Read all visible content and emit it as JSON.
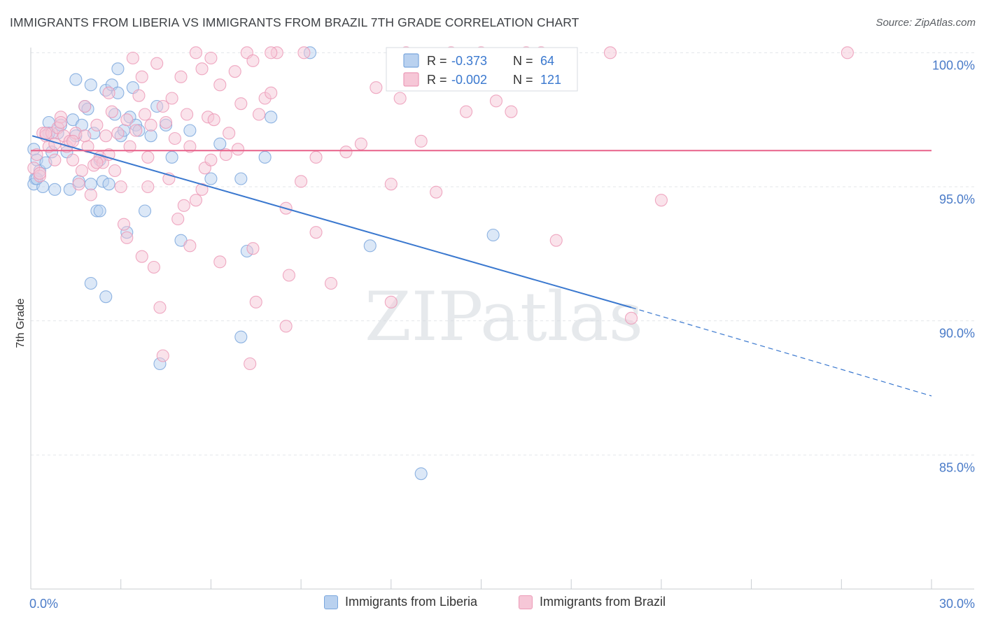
{
  "colors": {
    "blue": "#7ba7dd",
    "blue_fill": "#b9d1ef",
    "blue_line": "#3a78cf",
    "pink": "#ec9ab7",
    "pink_fill": "#f6c7d7",
    "pink_line": "#e8628a",
    "axis_label": "#4a7bc8",
    "grid": "#e3e6ea"
  },
  "chart_data": {
    "type": "scatter",
    "title": "IMMIGRANTS FROM LIBERIA VS IMMIGRANTS FROM BRAZIL 7TH GRADE CORRELATION CHART",
    "source": "Source: ZipAtlas.com",
    "xlabel": "",
    "ylabel": "7th Grade",
    "xlim": [
      0,
      30
    ],
    "ylim": [
      80,
      100.4
    ],
    "x_tick_labels": [
      "0.0%",
      "30.0%"
    ],
    "y_ticks": [
      85,
      90,
      95,
      100
    ],
    "y_tick_labels": [
      "85.0%",
      "90.0%",
      "95.0%",
      "100.0%"
    ],
    "watermark": "ZIPatlas",
    "legend_stats": [
      {
        "r_label": "R =",
        "r_value": "-0.373",
        "n_label": "N =",
        "n_value": "64"
      },
      {
        "r_label": "R =",
        "r_value": "-0.002",
        "n_label": "N =",
        "n_value": "121"
      }
    ],
    "series": [
      {
        "name": "Immigrants from Liberia",
        "trend": {
          "x0": 0.05,
          "y0": 96.9,
          "x1": 20.0,
          "y1": 90.5,
          "dash_to_x": 30.0,
          "dash_to_y": 87.2
        },
        "points": [
          [
            0.1,
            96.4
          ],
          [
            0.15,
            95.3
          ],
          [
            0.1,
            95.1
          ],
          [
            0.2,
            96.0
          ],
          [
            0.3,
            95.6
          ],
          [
            0.4,
            95.0
          ],
          [
            0.5,
            95.9
          ],
          [
            0.6,
            97.4
          ],
          [
            0.7,
            96.3
          ],
          [
            0.8,
            94.9
          ],
          [
            0.9,
            97.0
          ],
          [
            1.0,
            97.3
          ],
          [
            1.2,
            96.3
          ],
          [
            1.3,
            94.9
          ],
          [
            1.4,
            97.5
          ],
          [
            1.5,
            96.9
          ],
          [
            1.6,
            95.2
          ],
          [
            1.5,
            99.0
          ],
          [
            1.7,
            97.3
          ],
          [
            1.8,
            98.0
          ],
          [
            1.9,
            97.9
          ],
          [
            2.0,
            95.1
          ],
          [
            2.1,
            97.0
          ],
          [
            2.0,
            98.8
          ],
          [
            2.2,
            94.1
          ],
          [
            2.3,
            94.1
          ],
          [
            2.3,
            96.0
          ],
          [
            2.4,
            95.2
          ],
          [
            2.5,
            98.6
          ],
          [
            2.6,
            95.1
          ],
          [
            2.7,
            98.8
          ],
          [
            2.8,
            97.7
          ],
          [
            2.9,
            98.5
          ],
          [
            2.9,
            99.4
          ],
          [
            3.0,
            96.9
          ],
          [
            3.1,
            97.1
          ],
          [
            3.2,
            93.3
          ],
          [
            3.3,
            97.6
          ],
          [
            3.4,
            98.7
          ],
          [
            3.5,
            97.3
          ],
          [
            3.6,
            97.1
          ],
          [
            3.8,
            94.1
          ],
          [
            4.0,
            96.9
          ],
          [
            4.2,
            98.0
          ],
          [
            4.5,
            97.3
          ],
          [
            4.7,
            96.1
          ],
          [
            5.0,
            93.0
          ],
          [
            5.3,
            97.1
          ],
          [
            6.0,
            95.3
          ],
          [
            6.3,
            96.6
          ],
          [
            7.0,
            95.3
          ],
          [
            7.2,
            92.6
          ],
          [
            7.8,
            96.1
          ],
          [
            8.0,
            97.6
          ],
          [
            9.3,
            100.0
          ],
          [
            11.3,
            92.8
          ],
          [
            15.4,
            93.2
          ],
          [
            2.0,
            91.4
          ],
          [
            2.5,
            90.9
          ],
          [
            7.0,
            89.4
          ],
          [
            4.3,
            88.4
          ],
          [
            13.0,
            84.3
          ],
          [
            0.2,
            95.3
          ],
          [
            0.6,
            97.0
          ]
        ]
      },
      {
        "name": "Immigrants from Brazil",
        "trend": {
          "x0": 0.0,
          "y0": 96.35,
          "x1": 30.0,
          "y1": 96.35
        },
        "points": [
          [
            0.1,
            95.7
          ],
          [
            0.2,
            96.2
          ],
          [
            0.3,
            95.4
          ],
          [
            0.4,
            97.0
          ],
          [
            0.5,
            96.9
          ],
          [
            0.6,
            96.5
          ],
          [
            0.7,
            97.0
          ],
          [
            0.8,
            96.0
          ],
          [
            0.9,
            97.2
          ],
          [
            1.0,
            97.6
          ],
          [
            1.1,
            96.9
          ],
          [
            1.2,
            96.5
          ],
          [
            1.3,
            96.7
          ],
          [
            1.4,
            96.0
          ],
          [
            1.5,
            97.0
          ],
          [
            1.6,
            95.1
          ],
          [
            1.7,
            95.6
          ],
          [
            1.8,
            98.0
          ],
          [
            1.9,
            96.5
          ],
          [
            2.0,
            94.7
          ],
          [
            2.1,
            95.8
          ],
          [
            2.2,
            97.3
          ],
          [
            2.3,
            96.1
          ],
          [
            2.4,
            95.9
          ],
          [
            2.5,
            96.9
          ],
          [
            2.6,
            98.5
          ],
          [
            2.7,
            97.8
          ],
          [
            2.8,
            95.6
          ],
          [
            2.9,
            97.0
          ],
          [
            3.0,
            95.0
          ],
          [
            3.1,
            93.6
          ],
          [
            3.2,
            97.5
          ],
          [
            3.3,
            96.5
          ],
          [
            3.4,
            99.8
          ],
          [
            3.5,
            97.1
          ],
          [
            3.6,
            98.4
          ],
          [
            3.7,
            99.1
          ],
          [
            3.8,
            97.7
          ],
          [
            3.9,
            96.1
          ],
          [
            4.0,
            97.3
          ],
          [
            4.2,
            99.6
          ],
          [
            4.4,
            98.0
          ],
          [
            4.5,
            97.4
          ],
          [
            4.7,
            98.3
          ],
          [
            4.8,
            96.8
          ],
          [
            5.0,
            99.1
          ],
          [
            5.1,
            94.3
          ],
          [
            5.2,
            97.7
          ],
          [
            5.3,
            96.5
          ],
          [
            5.5,
            100.0
          ],
          [
            5.7,
            99.4
          ],
          [
            5.9,
            97.6
          ],
          [
            6.0,
            99.8
          ],
          [
            6.1,
            97.5
          ],
          [
            6.3,
            98.8
          ],
          [
            6.5,
            96.2
          ],
          [
            6.6,
            97.0
          ],
          [
            6.8,
            99.3
          ],
          [
            7.0,
            98.1
          ],
          [
            7.2,
            100.0
          ],
          [
            7.4,
            99.7
          ],
          [
            7.6,
            97.7
          ],
          [
            7.8,
            98.3
          ],
          [
            8.0,
            98.5
          ],
          [
            8.2,
            100.0
          ],
          [
            8.5,
            94.2
          ],
          [
            9.0,
            95.2
          ],
          [
            9.5,
            93.3
          ],
          [
            10.0,
            91.4
          ],
          [
            10.5,
            96.3
          ],
          [
            11.0,
            96.6
          ],
          [
            11.5,
            98.7
          ],
          [
            12.0,
            95.1
          ],
          [
            12.5,
            100.0
          ],
          [
            13.0,
            96.7
          ],
          [
            13.5,
            94.8
          ],
          [
            14.0,
            100.0
          ],
          [
            14.5,
            97.8
          ],
          [
            15.0,
            100.0
          ],
          [
            15.5,
            98.2
          ],
          [
            16.0,
            97.8
          ],
          [
            16.5,
            100.0
          ],
          [
            17.0,
            100.0
          ],
          [
            17.5,
            93.0
          ],
          [
            19.3,
            100.0
          ],
          [
            20.0,
            90.1
          ],
          [
            21.0,
            94.5
          ],
          [
            27.2,
            100.0
          ],
          [
            12.3,
            98.3
          ],
          [
            9.1,
            100.0
          ],
          [
            8.0,
            100.0
          ],
          [
            4.1,
            92.0
          ],
          [
            4.3,
            90.5
          ],
          [
            4.4,
            88.7
          ],
          [
            5.3,
            92.8
          ],
          [
            6.3,
            92.2
          ],
          [
            7.4,
            92.7
          ],
          [
            7.5,
            90.7
          ],
          [
            8.5,
            89.8
          ],
          [
            8.6,
            91.7
          ],
          [
            7.3,
            88.4
          ],
          [
            12.0,
            90.7
          ],
          [
            3.7,
            92.4
          ],
          [
            3.2,
            93.1
          ],
          [
            2.6,
            96.2
          ],
          [
            2.2,
            95.9
          ],
          [
            1.8,
            96.9
          ],
          [
            0.5,
            97.0
          ],
          [
            0.3,
            95.5
          ],
          [
            1.0,
            97.4
          ],
          [
            1.4,
            96.7
          ],
          [
            4.6,
            95.3
          ],
          [
            5.7,
            94.9
          ],
          [
            4.9,
            93.8
          ],
          [
            5.5,
            94.5
          ],
          [
            5.8,
            95.7
          ],
          [
            6.0,
            96.0
          ],
          [
            6.9,
            96.4
          ],
          [
            9.5,
            96.1
          ],
          [
            3.9,
            95.0
          ],
          [
            0.8,
            96.6
          ]
        ]
      }
    ]
  }
}
